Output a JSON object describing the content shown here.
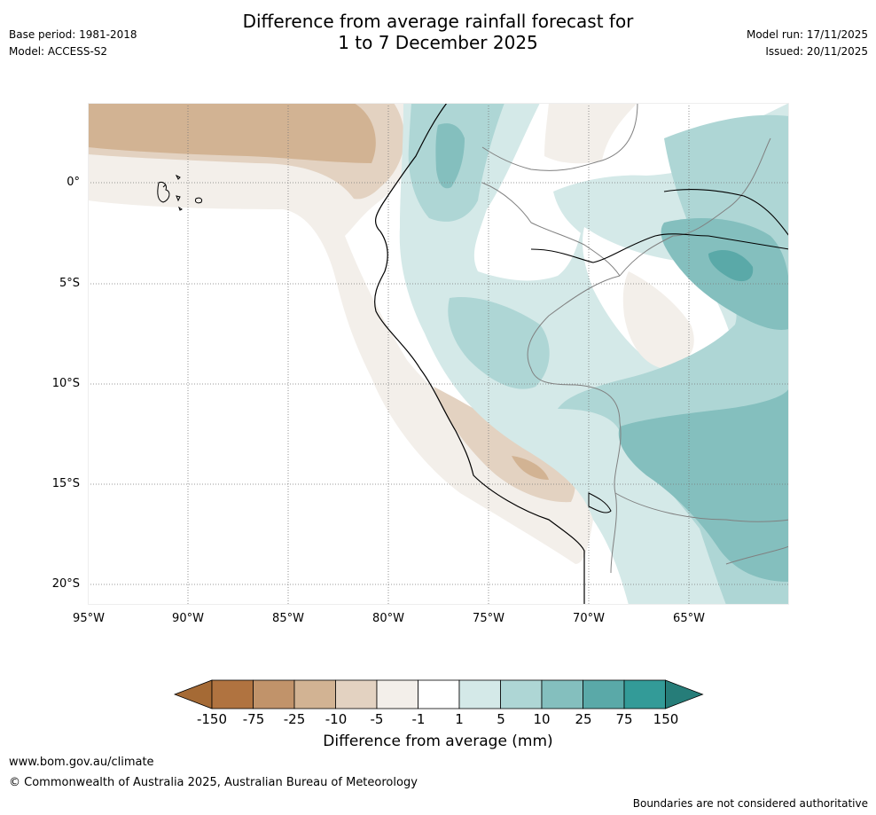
{
  "header": {
    "base_period": "Base period: 1981-2018",
    "model": "Model: ACCESS-S2",
    "title_line1": "Difference from average rainfall forecast for",
    "title_line2": "1 to 7 December 2025",
    "model_run": "Model run: 17/11/2025",
    "issued": "Issued: 20/11/2025"
  },
  "map": {
    "lat_labels": [
      "0°",
      "5°S",
      "10°S",
      "15°S",
      "20°S"
    ],
    "lon_labels": [
      "95°W",
      "90°W",
      "85°W",
      "80°W",
      "75°W",
      "70°W",
      "65°W"
    ]
  },
  "colorbar": {
    "ticks": [
      "-150",
      "-75",
      "-25",
      "-10",
      "-5",
      "-1",
      "1",
      "5",
      "10",
      "25",
      "75",
      "150"
    ],
    "colors": [
      "#a56a35",
      "#b07340",
      "#c1936a",
      "#d2b393",
      "#e3d2c1",
      "#f3efea",
      "#ffffff",
      "#d4e9e8",
      "#aed6d5",
      "#84bfbe",
      "#5aa9a8",
      "#339b98",
      "#267d79"
    ],
    "title": "Difference from average (mm)"
  },
  "footer": {
    "url": "www.bom.gov.au/climate",
    "copyright": "© Commonwealth of Australia 2025, Australian Bureau of Meteorology",
    "disclaimer": "Boundaries are not considered authoritative"
  }
}
